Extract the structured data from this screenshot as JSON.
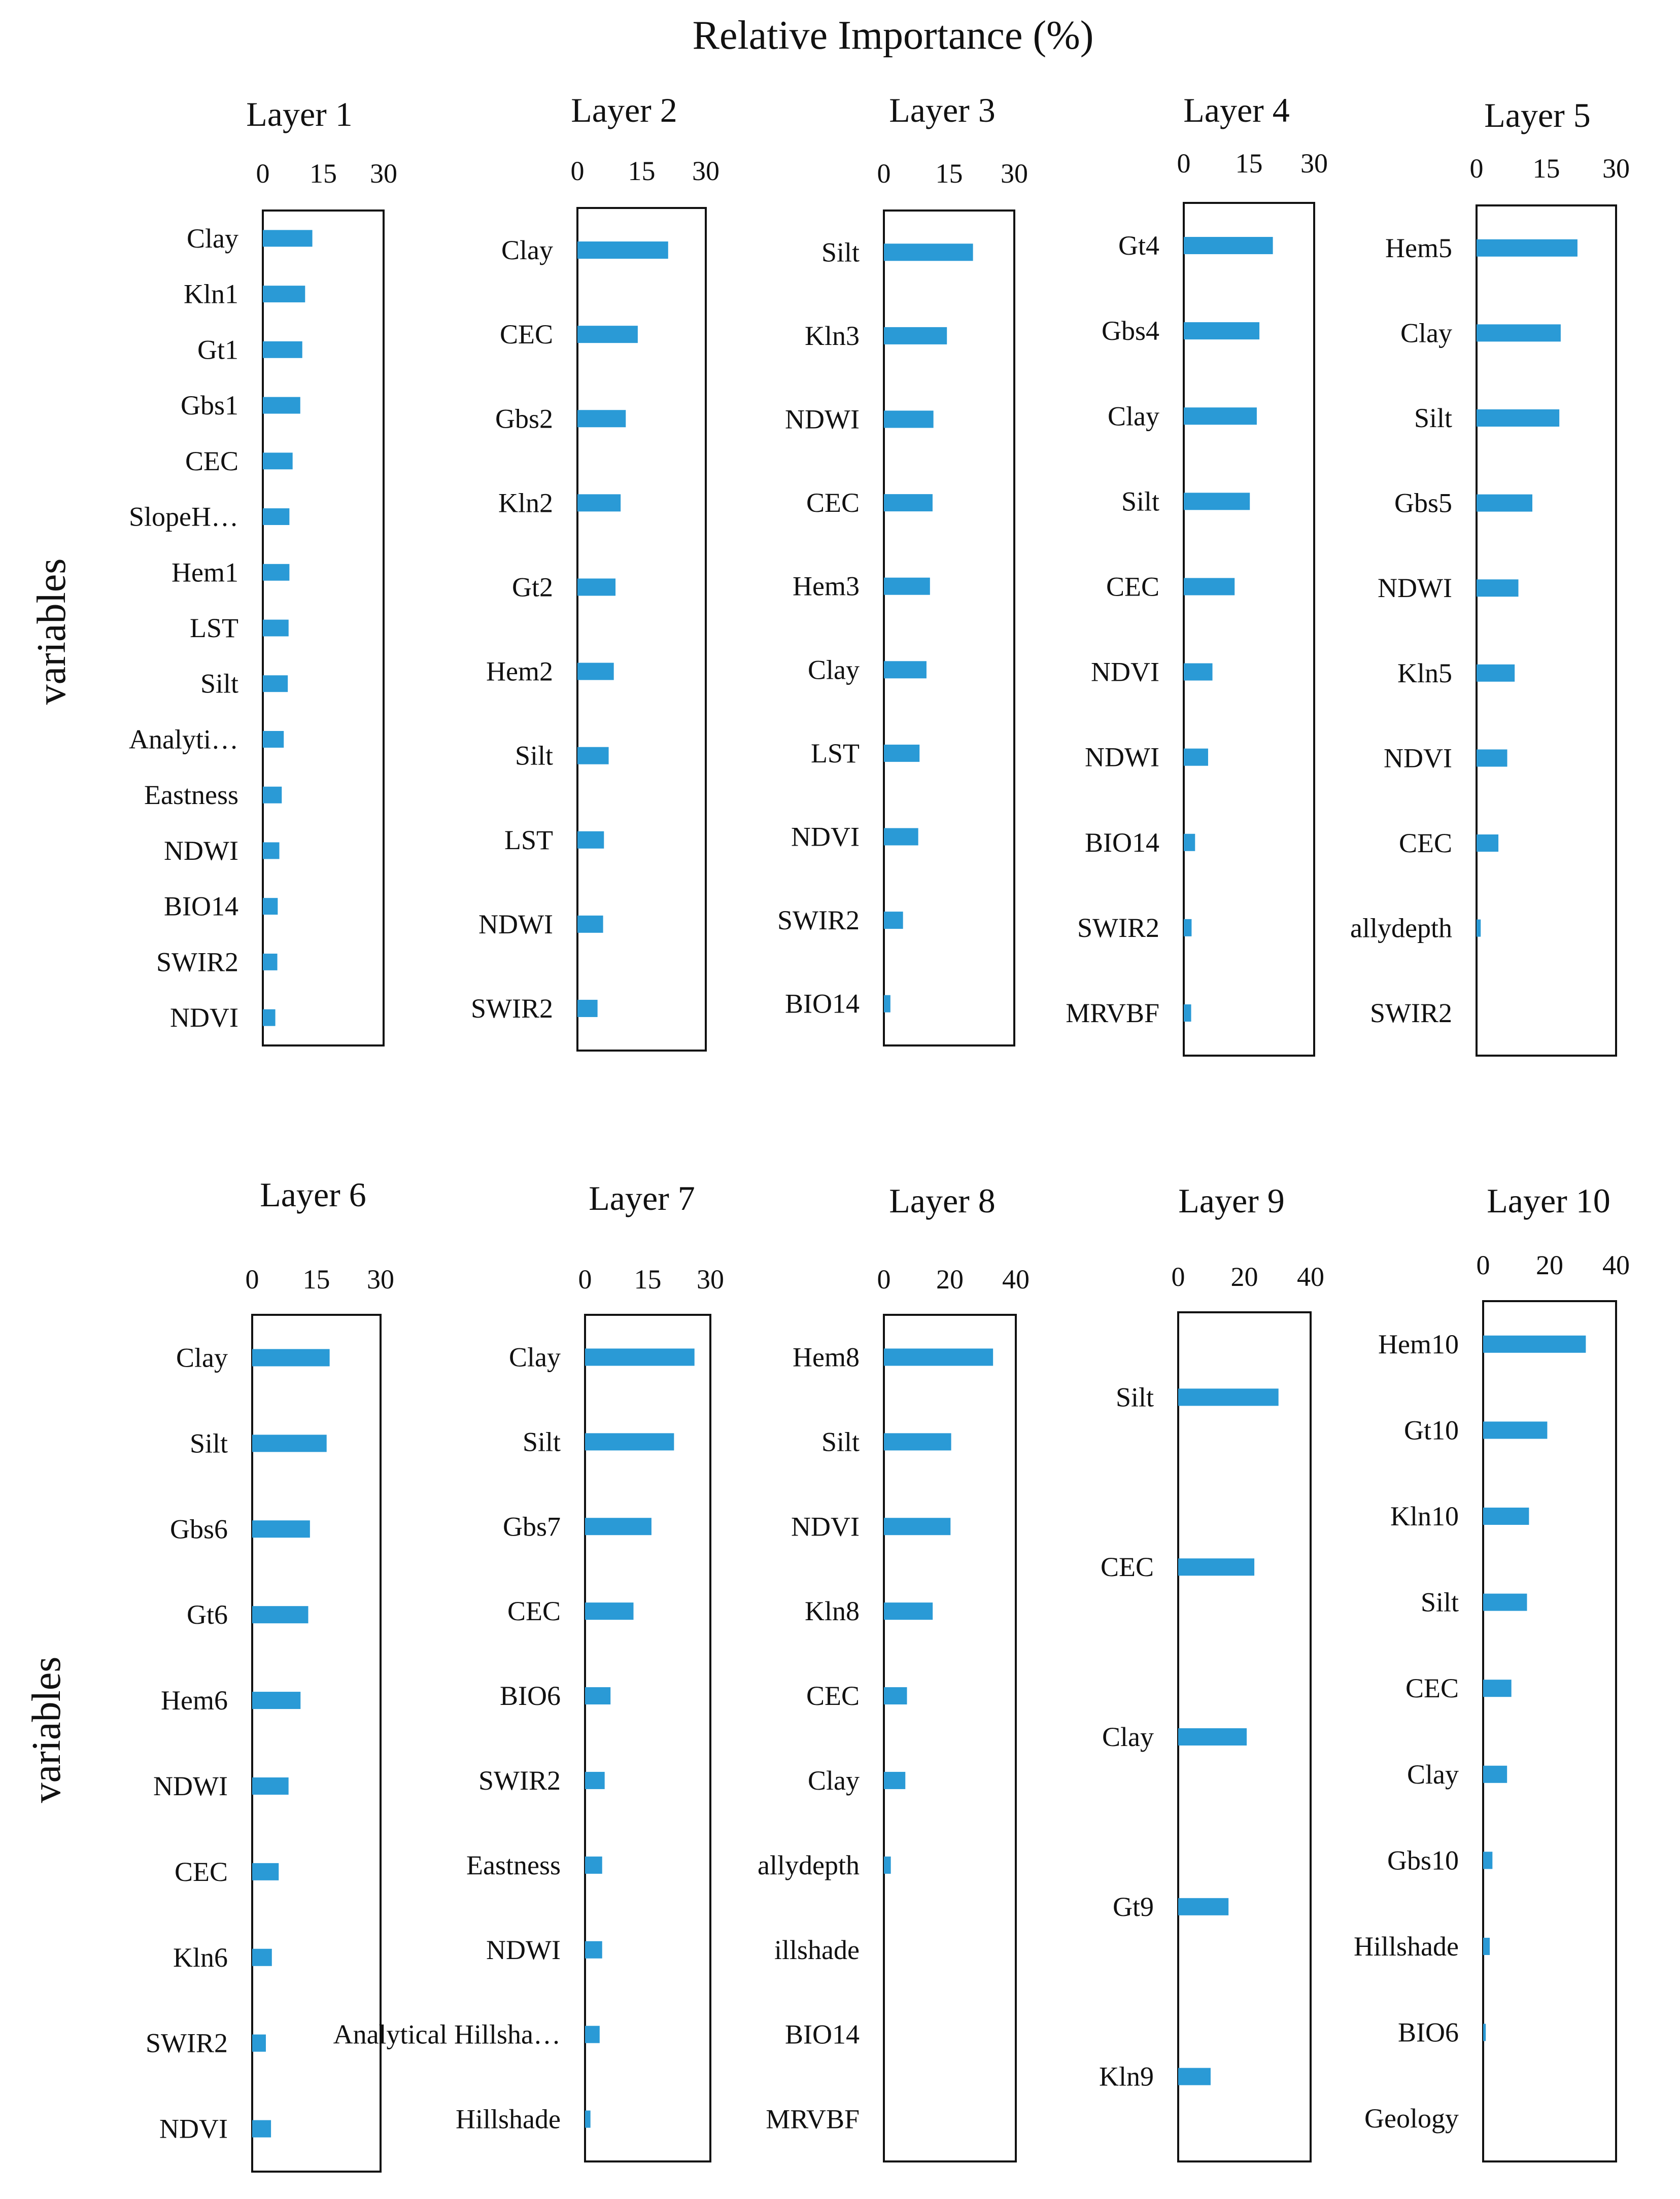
{
  "chart_data": {
    "type": "bar",
    "orientation": "horizontal",
    "title": "Relative Importance (%)",
    "ylabel": "variables",
    "bar_color": "#2a9ad6",
    "panels": [
      {
        "title": "Layer 1",
        "ticks": [
          "0",
          "15",
          "30"
        ],
        "xlim": [
          0,
          30
        ],
        "categories": [
          "Clay",
          "Kln1",
          "Gt1",
          "Gbs1",
          "CEC",
          "SlopeH…",
          "Hem1",
          "LST",
          "Silt",
          "Analyti…",
          "Eastness",
          "NDWI",
          "BIO14",
          "SWIR2",
          "NDVI"
        ],
        "values": [
          12.3,
          10.5,
          9.8,
          9.3,
          7.4,
          6.6,
          6.6,
          6.4,
          6.2,
          5.2,
          4.7,
          4.1,
          3.7,
          3.6,
          3.1
        ]
      },
      {
        "title": "Layer 2",
        "ticks": [
          "0",
          "15",
          "30"
        ],
        "xlim": [
          0,
          30
        ],
        "categories": [
          "Clay",
          "CEC",
          "Gbs2",
          "Kln2",
          "Gt2",
          "Hem2",
          "Silt",
          "LST",
          "NDWI",
          "SWIR2"
        ],
        "values": [
          21.2,
          14.1,
          11.3,
          10.1,
          8.9,
          8.5,
          7.3,
          6.2,
          6.0,
          4.7
        ]
      },
      {
        "title": "Layer 3",
        "ticks": [
          "0",
          "15",
          "30"
        ],
        "xlim": [
          0,
          30
        ],
        "categories": [
          "Silt",
          "Kln3",
          "NDWI",
          "CEC",
          "Hem3",
          "Clay",
          "LST",
          "NDVI",
          "SWIR2",
          "BIO14"
        ],
        "values": [
          20.5,
          14.5,
          11.4,
          11.2,
          10.6,
          9.8,
          8.2,
          7.9,
          4.4,
          1.5
        ]
      },
      {
        "title": "Layer 4",
        "ticks": [
          "0",
          "15",
          "30"
        ],
        "xlim": [
          0,
          30
        ],
        "categories": [
          "Gt4",
          "Gbs4",
          "Clay",
          "Silt",
          "CEC",
          "NDVI",
          "NDWI",
          "BIO14",
          "SWIR2",
          "MRVBF"
        ],
        "values": [
          20.5,
          17.4,
          16.8,
          15.2,
          11.7,
          6.6,
          5.6,
          2.6,
          1.8,
          1.7
        ]
      },
      {
        "title": "Layer 5",
        "ticks": [
          "0",
          "15",
          "30"
        ],
        "xlim": [
          0,
          30
        ],
        "categories": [
          "Hem5",
          "Clay",
          "Silt",
          "Gbs5",
          "NDWI",
          "Kln5",
          "NDVI",
          "CEC",
          "allydepth",
          "SWIR2"
        ],
        "values": [
          21.7,
          18.1,
          17.8,
          12.0,
          9.0,
          8.2,
          6.6,
          4.7,
          0.9,
          0.0
        ]
      },
      {
        "title": "Layer 6",
        "ticks": [
          "0",
          "15",
          "30"
        ],
        "xlim": [
          0,
          30
        ],
        "categories": [
          "Clay",
          "Silt",
          "Gbs6",
          "Gt6",
          "Hem6",
          "NDWI",
          "CEC",
          "Kln6",
          "SWIR2",
          "NDVI"
        ],
        "values": [
          18.1,
          17.4,
          13.5,
          13.1,
          11.3,
          8.5,
          6.2,
          4.6,
          3.2,
          4.4
        ]
      },
      {
        "title": "Layer 7",
        "ticks": [
          "0",
          "15",
          "30"
        ],
        "xlim": [
          0,
          30
        ],
        "categories": [
          "Clay",
          "Silt",
          "Gbs7",
          "CEC",
          "BIO6",
          "SWIR2",
          "Eastness",
          "NDWI",
          "Analytical Hillsha…",
          "Hillshade"
        ],
        "values": [
          26.2,
          21.3,
          15.9,
          11.6,
          6.1,
          4.7,
          4.1,
          4.1,
          3.5,
          1.3
        ]
      },
      {
        "title": "Layer 8",
        "ticks": [
          "0",
          "20",
          "40"
        ],
        "xlim": [
          0,
          40
        ],
        "categories": [
          "Hem8",
          "Silt",
          "NDVI",
          "Kln8",
          "CEC",
          "Clay",
          "allydepth",
          "illshade",
          "BIO14",
          "MRVBF"
        ],
        "values": [
          33.1,
          20.4,
          20.2,
          14.8,
          7.0,
          6.5,
          2.1,
          0.0,
          0.0,
          0.0
        ]
      },
      {
        "title": "Layer 9",
        "ticks": [
          "0",
          "20",
          "40"
        ],
        "xlim": [
          0,
          40
        ],
        "categories": [
          "Silt",
          "CEC",
          "Clay",
          "Gt9",
          "Kln9"
        ],
        "values": [
          30.3,
          23.0,
          20.7,
          15.2,
          9.8
        ]
      },
      {
        "title": "Layer 10",
        "ticks": [
          "0",
          "20",
          "40"
        ],
        "xlim": [
          0,
          40
        ],
        "categories": [
          "Hem10",
          "Gt10",
          "Kln10",
          "Silt",
          "CEC",
          "Clay",
          "Gbs10",
          "Hillshade",
          "BIO6",
          "Geology"
        ],
        "values": [
          30.9,
          19.3,
          13.8,
          13.2,
          8.5,
          7.2,
          2.8,
          2.0,
          0.8,
          0.0
        ]
      }
    ]
  }
}
